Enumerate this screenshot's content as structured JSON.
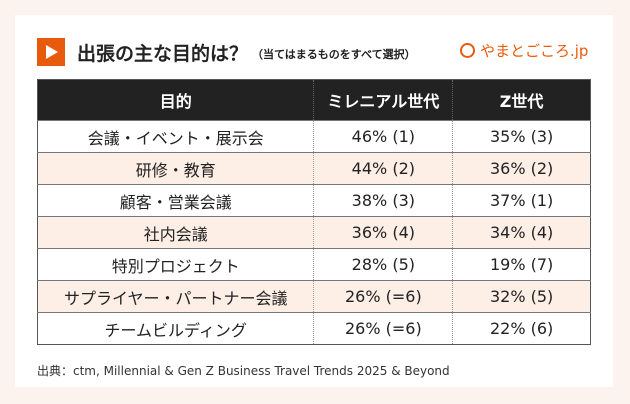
{
  "title": "出張の主な目的は？",
  "subtitle": "（当てはまるものをすべて選択）",
  "logo": "やまとごころ.jp",
  "table": {
    "headers": [
      "目的",
      "ミレニアル世代",
      "Z世代"
    ],
    "rows": [
      [
        "会議・イベント・展示会",
        "46% (1)",
        "35% (3)"
      ],
      [
        "研修・教育",
        "44% (2)",
        "36% (2)"
      ],
      [
        "顧客・営業会議",
        "38% (3)",
        "37% (1)"
      ],
      [
        "社内会議",
        "36% (4)",
        "34% (4)"
      ],
      [
        "特別プロジェクト",
        "28% (5)",
        "19% (7)"
      ],
      [
        "サプライヤー・パートナー会議",
        "26% (=6)",
        "32% (5)"
      ],
      [
        "チームビルディング",
        "26% (=6)",
        "22% (6)"
      ]
    ]
  },
  "source": "出典：ctm, Millennial & Gen Z Business Travel Trends 2025 & Beyond",
  "colors": {
    "accent": "#e85a0c",
    "header_bg": "#222222",
    "alt_row": "#fdeee6"
  }
}
